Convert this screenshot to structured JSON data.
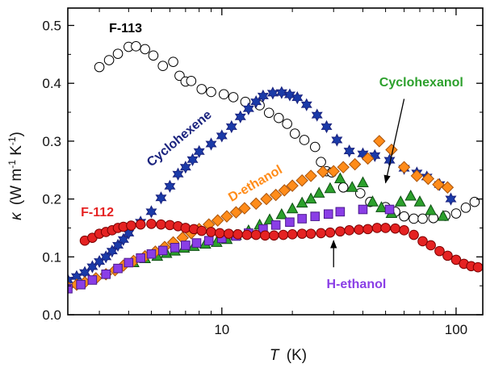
{
  "chart_data": {
    "type": "scatter",
    "xscale": "log",
    "xlim": [
      2.2,
      130
    ],
    "ylim": [
      0.0,
      0.53
    ],
    "xticks": [
      10,
      100
    ],
    "xtick_labels": [
      "10",
      "100"
    ],
    "yticks": [
      0.0,
      0.1,
      0.2,
      0.3,
      0.4,
      0.5
    ],
    "ytick_labels": [
      "0.0",
      "0.1",
      "0.2",
      "0.3",
      "0.4",
      "0.5"
    ],
    "xlabel_symbol": "T",
    "xlabel_unit": "(K)",
    "ylabel_symbol": "κ",
    "ylabel_unit": "(W m",
    "ylabel_sup1": "-1",
    "ylabel_mid": " K",
    "ylabel_sup2": "-1",
    "ylabel_end": ")",
    "grid": false,
    "series": [
      {
        "name": "F-113",
        "marker": "circle-open",
        "color": "#000000",
        "fill": "#ffffff",
        "x": [
          3.0,
          3.3,
          3.6,
          4.0,
          4.3,
          4.7,
          5.1,
          5.6,
          6.2,
          6.6,
          7.0,
          7.4,
          8.2,
          9.0,
          10.2,
          11.2,
          12.6,
          14.5,
          15.9,
          17.5,
          19.0,
          20.5,
          22.5,
          25.0,
          26.5,
          28.0,
          29.5,
          33.0,
          39.0,
          43.0,
          50.0,
          55.0,
          60.0,
          66.0,
          72.0,
          80.0,
          90.0,
          100.0,
          110.0,
          120.0
        ],
        "y": [
          0.428,
          0.44,
          0.451,
          0.463,
          0.464,
          0.459,
          0.448,
          0.43,
          0.437,
          0.413,
          0.403,
          0.404,
          0.39,
          0.385,
          0.381,
          0.376,
          0.368,
          0.362,
          0.349,
          0.34,
          0.33,
          0.313,
          0.302,
          0.29,
          0.264,
          0.248,
          0.246,
          0.22,
          0.21,
          0.195,
          0.186,
          0.178,
          0.17,
          0.166,
          0.166,
          0.167,
          0.171,
          0.175,
          0.185,
          0.195
        ]
      },
      {
        "name": "Cyclohexene",
        "marker": "star",
        "color": "#1a237e",
        "fill": "#1a3aa8",
        "x": [
          2.2,
          2.4,
          2.6,
          2.8,
          3.0,
          3.2,
          3.4,
          3.6,
          3.8,
          4.0,
          4.5,
          5.0,
          5.5,
          6.0,
          6.5,
          7.0,
          7.5,
          8.0,
          9.0,
          10.0,
          11.0,
          12.0,
          13.0,
          14.0,
          15.0,
          16.5,
          18.0,
          19.5,
          21.0,
          23.0,
          25.5,
          28.0,
          31.0,
          35.0,
          40.0,
          45.0,
          52.0,
          60.0,
          68.0,
          75.0,
          85.0,
          95.0
        ],
        "y": [
          0.06,
          0.066,
          0.073,
          0.083,
          0.092,
          0.1,
          0.11,
          0.12,
          0.13,
          0.141,
          0.16,
          0.178,
          0.202,
          0.222,
          0.243,
          0.255,
          0.268,
          0.282,
          0.295,
          0.309,
          0.325,
          0.342,
          0.356,
          0.368,
          0.378,
          0.383,
          0.384,
          0.38,
          0.375,
          0.363,
          0.345,
          0.325,
          0.302,
          0.283,
          0.278,
          0.275,
          0.267,
          0.253,
          0.245,
          0.238,
          0.225,
          0.2
        ]
      },
      {
        "name": "Cyclohexanol",
        "marker": "triangle",
        "color": "#0d4d12",
        "fill": "#2ca02c",
        "x": [
          4.2,
          4.7,
          5.3,
          5.8,
          6.3,
          6.9,
          7.6,
          8.5,
          9.5,
          10.5,
          11.5,
          13.0,
          14.5,
          16.0,
          18.0,
          20.0,
          22.0,
          24.0,
          26.0,
          29.0,
          32.0,
          36.0,
          40.0,
          44.0,
          48.0,
          53.0,
          58.0,
          64.0,
          70.0,
          78.0,
          88.0
        ],
        "y": [
          0.09,
          0.097,
          0.101,
          0.106,
          0.11,
          0.115,
          0.118,
          0.122,
          0.125,
          0.13,
          0.137,
          0.145,
          0.155,
          0.164,
          0.173,
          0.183,
          0.193,
          0.2,
          0.21,
          0.218,
          0.235,
          0.22,
          0.228,
          0.195,
          0.185,
          0.175,
          0.195,
          0.205,
          0.195,
          0.18,
          0.17
        ]
      },
      {
        "name": "D-ethanol",
        "marker": "diamond",
        "color": "#a8520a",
        "fill": "#ff8c1a",
        "x": [
          2.2,
          2.4,
          2.6,
          2.9,
          3.2,
          3.5,
          3.8,
          4.2,
          4.7,
          5.2,
          5.7,
          6.2,
          6.8,
          7.4,
          8.0,
          8.8,
          9.6,
          10.5,
          11.5,
          12.5,
          14.0,
          15.5,
          17.0,
          18.5,
          20.0,
          22.0,
          24.0,
          27.0,
          30.0,
          33.0,
          37.0,
          42.0,
          47.0,
          53.0,
          60.0,
          68.0,
          76.0,
          84.0,
          92.0
        ],
        "y": [
          0.048,
          0.052,
          0.056,
          0.063,
          0.07,
          0.077,
          0.085,
          0.093,
          0.101,
          0.109,
          0.117,
          0.125,
          0.133,
          0.141,
          0.148,
          0.156,
          0.163,
          0.17,
          0.177,
          0.184,
          0.192,
          0.2,
          0.207,
          0.215,
          0.223,
          0.232,
          0.24,
          0.247,
          0.248,
          0.255,
          0.26,
          0.27,
          0.3,
          0.285,
          0.255,
          0.24,
          0.235,
          0.225,
          0.22
        ]
      },
      {
        "name": "H-ethanol",
        "marker": "square",
        "color": "#4b1a8c",
        "fill": "#8a3ee6",
        "x": [
          2.2,
          2.5,
          2.8,
          3.2,
          3.6,
          4.0,
          4.5,
          5.0,
          5.6,
          6.3,
          7.0,
          7.8,
          8.8,
          10.0,
          11.5,
          13.0,
          15.0,
          17.0,
          19.5,
          22.0,
          25.0,
          28.5,
          32.0,
          40.0,
          52.0
        ],
        "y": [
          0.045,
          0.052,
          0.06,
          0.07,
          0.08,
          0.09,
          0.098,
          0.105,
          0.111,
          0.116,
          0.12,
          0.124,
          0.128,
          0.132,
          0.136,
          0.141,
          0.148,
          0.155,
          0.16,
          0.166,
          0.17,
          0.174,
          0.178,
          0.182,
          0.182
        ]
      },
      {
        "name": "F-112",
        "marker": "circle",
        "color": "#7a0000",
        "fill": "#e52222",
        "x": [
          2.6,
          2.8,
          3.0,
          3.2,
          3.4,
          3.6,
          3.8,
          4.1,
          4.5,
          5.0,
          5.5,
          6.0,
          6.5,
          7.0,
          7.6,
          8.2,
          9.0,
          9.8,
          10.7,
          11.7,
          12.8,
          14.0,
          15.3,
          16.7,
          18.3,
          20.0,
          22.0,
          24.0,
          26.5,
          29.0,
          32.0,
          35.0,
          38.5,
          42.0,
          46.0,
          50.0,
          55.0,
          60.0,
          66.0,
          72.0,
          78.0,
          85.0,
          92.0,
          100.0,
          108.0,
          116.0,
          124.0
        ],
        "y": [
          0.128,
          0.133,
          0.14,
          0.143,
          0.146,
          0.15,
          0.152,
          0.154,
          0.156,
          0.157,
          0.156,
          0.155,
          0.153,
          0.15,
          0.148,
          0.145,
          0.143,
          0.141,
          0.14,
          0.139,
          0.138,
          0.138,
          0.137,
          0.137,
          0.138,
          0.139,
          0.14,
          0.14,
          0.141,
          0.142,
          0.144,
          0.146,
          0.147,
          0.148,
          0.15,
          0.15,
          0.149,
          0.146,
          0.138,
          0.127,
          0.12,
          0.11,
          0.102,
          0.095,
          0.088,
          0.084,
          0.082
        ]
      }
    ],
    "labels": [
      {
        "text": "F-113",
        "color": "#000000",
        "x": 3.3,
        "y": 0.488,
        "rotate": 0
      },
      {
        "text": "Cyclohexene",
        "color": "#1a237e",
        "x": 5.0,
        "y": 0.255,
        "rotate": -40
      },
      {
        "text": "F-112",
        "color": "#e52222",
        "x": 2.5,
        "y": 0.17,
        "rotate": 0
      },
      {
        "text": "D-ethanol",
        "color": "#ff8c1a",
        "x": 11.0,
        "y": 0.195,
        "rotate": -30
      },
      {
        "text": "Cyclohexanol",
        "color": "#2ca02c",
        "x": 47.0,
        "y": 0.395,
        "rotate": 0
      },
      {
        "text": "H-ethanol",
        "color": "#8a3ee6",
        "x": 28.0,
        "y": 0.046,
        "rotate": 0
      }
    ],
    "arrows": [
      {
        "name": "cyclohexanol-arrow",
        "from": [
          60.0,
          0.373
        ],
        "to": [
          50.0,
          0.228
        ]
      },
      {
        "name": "h-ethanol-arrow",
        "from": [
          30.0,
          0.082
        ],
        "to": [
          30.0,
          0.128
        ]
      }
    ]
  }
}
